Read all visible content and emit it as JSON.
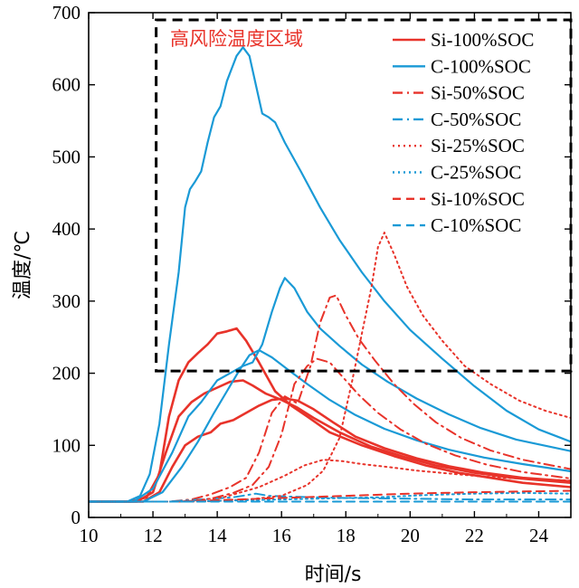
{
  "colors": {
    "si": "#e8332a",
    "c": "#1a9ad6",
    "zone": "#000000"
  },
  "chart_data": {
    "type": "line",
    "title": "",
    "xlabel": "时间/s",
    "ylabel": "温度/℃",
    "xlim": [
      10,
      25
    ],
    "ylim": [
      0,
      700
    ],
    "xticks": [
      "10",
      "12",
      "14",
      "16",
      "18",
      "20",
      "22",
      "24"
    ],
    "yticks": [
      "0",
      "100",
      "200",
      "300",
      "400",
      "500",
      "600",
      "700"
    ],
    "grid": false,
    "legend_position": "top-right",
    "annotation": {
      "text": "高风险温度区域",
      "region": {
        "x": [
          12.1,
          25
        ],
        "y": [
          203,
          690
        ]
      }
    },
    "series": [
      {
        "name": "Si-100%SOC",
        "color": "si",
        "dash": "solid",
        "width": 2.6,
        "points": [
          [
            10,
            22
          ],
          [
            11.3,
            22
          ],
          [
            11.8,
            28
          ],
          [
            12.2,
            60
          ],
          [
            12.5,
            140
          ],
          [
            12.8,
            190
          ],
          [
            13.1,
            215
          ],
          [
            13.4,
            228
          ],
          [
            13.7,
            240
          ],
          [
            14.0,
            255
          ],
          [
            14.3,
            258
          ],
          [
            14.6,
            262
          ],
          [
            14.9,
            245
          ],
          [
            15.3,
            215
          ],
          [
            15.8,
            175
          ],
          [
            16.3,
            155
          ],
          [
            16.8,
            140
          ],
          [
            17.5,
            118
          ],
          [
            18.5,
            100
          ],
          [
            19.5,
            85
          ],
          [
            20.5,
            72
          ],
          [
            21.5,
            62
          ],
          [
            22.5,
            55
          ],
          [
            23.5,
            48
          ],
          [
            25,
            42
          ]
        ]
      },
      {
        "name": "Si-100%SOC",
        "color": "si",
        "dash": "solid",
        "width": 2.6,
        "points": [
          [
            10,
            22
          ],
          [
            11.5,
            22
          ],
          [
            12.0,
            35
          ],
          [
            12.4,
            90
          ],
          [
            12.8,
            140
          ],
          [
            13.2,
            160
          ],
          [
            13.6,
            172
          ],
          [
            14.0,
            180
          ],
          [
            14.4,
            188
          ],
          [
            14.8,
            190
          ],
          [
            15.1,
            183
          ],
          [
            15.5,
            172
          ],
          [
            16.0,
            163
          ],
          [
            16.5,
            152
          ],
          [
            17.0,
            138
          ],
          [
            17.8,
            118
          ],
          [
            18.8,
            98
          ],
          [
            19.8,
            84
          ],
          [
            20.8,
            72
          ],
          [
            22,
            62
          ],
          [
            23.2,
            55
          ],
          [
            25,
            48
          ]
        ]
      },
      {
        "name": "Si-100%SOC",
        "color": "si",
        "dash": "solid",
        "width": 2.6,
        "points": [
          [
            10,
            22
          ],
          [
            11.7,
            22
          ],
          [
            12.2,
            35
          ],
          [
            12.6,
            70
          ],
          [
            13.0,
            100
          ],
          [
            13.4,
            112
          ],
          [
            13.8,
            118
          ],
          [
            14.1,
            130
          ],
          [
            14.5,
            135
          ],
          [
            14.9,
            145
          ],
          [
            15.3,
            155
          ],
          [
            15.7,
            163
          ],
          [
            16.1,
            165
          ],
          [
            16.5,
            162
          ],
          [
            17.0,
            150
          ],
          [
            17.6,
            132
          ],
          [
            18.3,
            112
          ],
          [
            19.2,
            96
          ],
          [
            20.2,
            82
          ],
          [
            21.2,
            71
          ],
          [
            22.3,
            62
          ],
          [
            23.5,
            55
          ],
          [
            25,
            50
          ]
        ]
      },
      {
        "name": "C-100%SOC",
        "color": "c",
        "dash": "solid",
        "width": 2.2,
        "points": [
          [
            10,
            22
          ],
          [
            11.2,
            22
          ],
          [
            11.6,
            30
          ],
          [
            11.9,
            60
          ],
          [
            12.2,
            130
          ],
          [
            12.5,
            240
          ],
          [
            12.8,
            340
          ],
          [
            13.0,
            430
          ],
          [
            13.15,
            455
          ],
          [
            13.3,
            465
          ],
          [
            13.5,
            480
          ],
          [
            13.7,
            520
          ],
          [
            13.9,
            555
          ],
          [
            14.1,
            570
          ],
          [
            14.3,
            605
          ],
          [
            14.6,
            640
          ],
          [
            14.8,
            652
          ],
          [
            15.0,
            640
          ],
          [
            15.2,
            600
          ],
          [
            15.4,
            560
          ],
          [
            15.6,
            555
          ],
          [
            15.8,
            548
          ],
          [
            16.1,
            520
          ],
          [
            16.6,
            480
          ],
          [
            17.2,
            430
          ],
          [
            17.8,
            385
          ],
          [
            18.5,
            340
          ],
          [
            19.2,
            300
          ],
          [
            20.0,
            260
          ],
          [
            21.0,
            220
          ],
          [
            22.0,
            182
          ],
          [
            23.0,
            148
          ],
          [
            24.0,
            122
          ],
          [
            25,
            105
          ]
        ]
      },
      {
        "name": "C-100%SOC",
        "color": "c",
        "dash": "solid",
        "width": 2.2,
        "points": [
          [
            10,
            22
          ],
          [
            11.4,
            22
          ],
          [
            12.0,
            40
          ],
          [
            12.6,
            90
          ],
          [
            13.1,
            140
          ],
          [
            13.5,
            160
          ],
          [
            14.0,
            190
          ],
          [
            14.4,
            200
          ],
          [
            14.8,
            210
          ],
          [
            15.1,
            215
          ],
          [
            15.4,
            240
          ],
          [
            15.7,
            285
          ],
          [
            15.95,
            318
          ],
          [
            16.1,
            332
          ],
          [
            16.4,
            318
          ],
          [
            16.8,
            285
          ],
          [
            17.2,
            262
          ],
          [
            17.8,
            238
          ],
          [
            18.5,
            212
          ],
          [
            19.3,
            188
          ],
          [
            20.2,
            165
          ],
          [
            21.2,
            143
          ],
          [
            22.2,
            124
          ],
          [
            23.3,
            108
          ],
          [
            25,
            92
          ]
        ]
      },
      {
        "name": "C-100%SOC",
        "color": "c",
        "dash": "solid",
        "width": 2.2,
        "points": [
          [
            10,
            22
          ],
          [
            11.7,
            22
          ],
          [
            12.3,
            35
          ],
          [
            12.9,
            70
          ],
          [
            13.4,
            105
          ],
          [
            13.9,
            145
          ],
          [
            14.3,
            175
          ],
          [
            14.7,
            205
          ],
          [
            15.0,
            225
          ],
          [
            15.3,
            232
          ],
          [
            15.7,
            222
          ],
          [
            16.2,
            205
          ],
          [
            16.8,
            185
          ],
          [
            17.5,
            163
          ],
          [
            18.3,
            142
          ],
          [
            19.2,
            123
          ],
          [
            20.2,
            107
          ],
          [
            21.2,
            94
          ],
          [
            22.3,
            83
          ],
          [
            23.5,
            74
          ],
          [
            25,
            64
          ]
        ]
      },
      {
        "name": "Si-50%SOC",
        "color": "si",
        "dash": "dashdot",
        "width": 2,
        "points": [
          [
            10,
            22
          ],
          [
            12.5,
            22
          ],
          [
            13.2,
            25
          ],
          [
            13.8,
            32
          ],
          [
            14.4,
            42
          ],
          [
            14.9,
            55
          ],
          [
            15.3,
            90
          ],
          [
            15.7,
            145
          ],
          [
            16.1,
            168
          ],
          [
            16.5,
            158
          ],
          [
            16.9,
            210
          ],
          [
            17.2,
            270
          ],
          [
            17.5,
            305
          ],
          [
            17.7,
            308
          ],
          [
            18.0,
            280
          ],
          [
            18.4,
            248
          ],
          [
            18.9,
            218
          ],
          [
            19.5,
            185
          ],
          [
            20.1,
            158
          ],
          [
            20.8,
            132
          ],
          [
            21.6,
            110
          ],
          [
            22.5,
            93
          ],
          [
            23.5,
            80
          ],
          [
            25,
            67
          ]
        ]
      },
      {
        "name": "Si-50%SOC",
        "color": "si",
        "dash": "dashdot",
        "width": 2,
        "points": [
          [
            10,
            22
          ],
          [
            13.0,
            22
          ],
          [
            13.8,
            26
          ],
          [
            14.5,
            34
          ],
          [
            15.1,
            45
          ],
          [
            15.6,
            70
          ],
          [
            16.0,
            115
          ],
          [
            16.4,
            185
          ],
          [
            16.8,
            210
          ],
          [
            17.1,
            220
          ],
          [
            17.5,
            215
          ],
          [
            17.9,
            195
          ],
          [
            18.4,
            170
          ],
          [
            19.0,
            145
          ],
          [
            19.7,
            122
          ],
          [
            20.5,
            102
          ],
          [
            21.4,
            86
          ],
          [
            22.4,
            73
          ],
          [
            23.5,
            63
          ],
          [
            25,
            54
          ]
        ]
      },
      {
        "name": "C-50%SOC",
        "color": "c",
        "dash": "dashdot",
        "width": 2,
        "points": [
          [
            10,
            22
          ],
          [
            12.5,
            22
          ],
          [
            13.5,
            25
          ],
          [
            14.5,
            28
          ],
          [
            15.2,
            33
          ],
          [
            15.6,
            30
          ],
          [
            16.2,
            29
          ],
          [
            17,
            28
          ],
          [
            18,
            27
          ],
          [
            20,
            26
          ],
          [
            22,
            25
          ],
          [
            25,
            25
          ]
        ]
      },
      {
        "name": "Si-25%SOC",
        "color": "si",
        "dash": "dot",
        "width": 2,
        "points": [
          [
            10,
            22
          ],
          [
            13.5,
            22
          ],
          [
            15.0,
            25
          ],
          [
            16.0,
            30
          ],
          [
            16.8,
            45
          ],
          [
            17.3,
            65
          ],
          [
            17.8,
            110
          ],
          [
            18.2,
            190
          ],
          [
            18.5,
            255
          ],
          [
            18.8,
            320
          ],
          [
            19.0,
            375
          ],
          [
            19.2,
            395
          ],
          [
            19.5,
            365
          ],
          [
            19.9,
            320
          ],
          [
            20.4,
            280
          ],
          [
            21.0,
            245
          ],
          [
            21.7,
            210
          ],
          [
            22.5,
            185
          ],
          [
            23.4,
            162
          ],
          [
            24.2,
            148
          ],
          [
            25,
            138
          ]
        ]
      },
      {
        "name": "Si-25%SOC",
        "color": "si",
        "dash": "dot",
        "width": 2,
        "points": [
          [
            10,
            22
          ],
          [
            13.0,
            22
          ],
          [
            14.2,
            28
          ],
          [
            15.3,
            42
          ],
          [
            16.1,
            58
          ],
          [
            16.7,
            72
          ],
          [
            17.3,
            80
          ],
          [
            17.9,
            78
          ],
          [
            18.5,
            74
          ],
          [
            19.3,
            70
          ],
          [
            20.2,
            65
          ],
          [
            21.2,
            61
          ],
          [
            22.2,
            57
          ],
          [
            23.4,
            54
          ],
          [
            25,
            51
          ]
        ]
      },
      {
        "name": "C-25%SOC",
        "color": "c",
        "dash": "dot",
        "width": 2,
        "points": [
          [
            10,
            22
          ],
          [
            13,
            22
          ],
          [
            15,
            24
          ],
          [
            17,
            26
          ],
          [
            19,
            28
          ],
          [
            20.5,
            31
          ],
          [
            22,
            33
          ],
          [
            23.5,
            34
          ],
          [
            25,
            33
          ]
        ]
      },
      {
        "name": "Si-10%SOC",
        "color": "si",
        "dash": "dash",
        "width": 2,
        "points": [
          [
            10,
            22
          ],
          [
            12.5,
            22
          ],
          [
            14,
            24
          ],
          [
            16,
            27
          ],
          [
            18,
            30
          ],
          [
            20,
            33
          ],
          [
            22,
            35
          ],
          [
            23.5,
            36
          ],
          [
            25,
            37
          ]
        ]
      },
      {
        "name": "C-10%SOC",
        "color": "c",
        "dash": "dash",
        "width": 2,
        "points": [
          [
            10,
            22
          ],
          [
            25,
            22
          ]
        ]
      }
    ],
    "legend": [
      {
        "label": "Si-100%SOC",
        "color": "si",
        "dash": "solid"
      },
      {
        "label": "C-100%SOC",
        "color": "c",
        "dash": "solid"
      },
      {
        "label": "Si-50%SOC",
        "color": "si",
        "dash": "dashdot"
      },
      {
        "label": "C-50%SOC",
        "color": "c",
        "dash": "dashdot"
      },
      {
        "label": "Si-25%SOC",
        "color": "si",
        "dash": "dot"
      },
      {
        "label": "C-25%SOC",
        "color": "c",
        "dash": "dot"
      },
      {
        "label": "Si-10%SOC",
        "color": "si",
        "dash": "dash"
      },
      {
        "label": "C-10%SOC",
        "color": "c",
        "dash": "dash"
      }
    ]
  }
}
